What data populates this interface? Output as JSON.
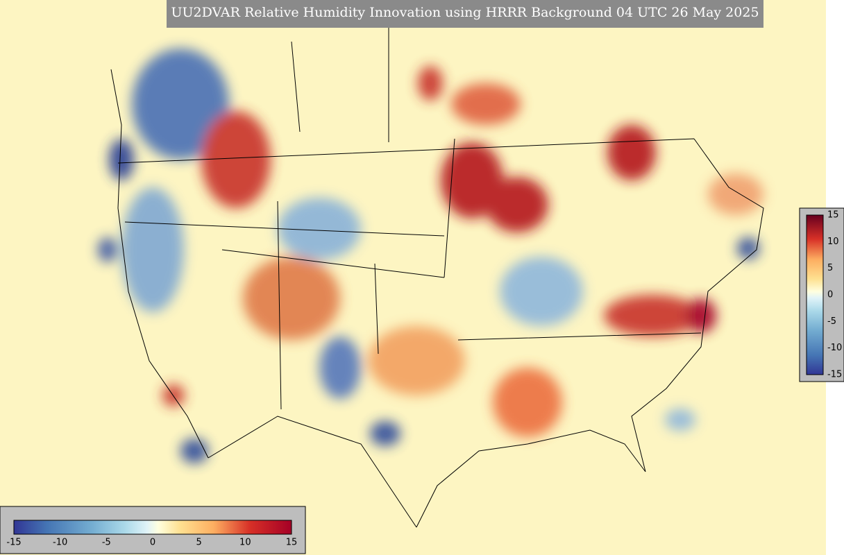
{
  "title": "UU2DVAR Relative Humidity Innovation using HRRR Background 04 UTC 26 May 2025",
  "colorbar_right": {
    "ticks": [
      15,
      10,
      5,
      0,
      -5,
      -10,
      -15
    ]
  },
  "colorbar_bottom": {
    "ticks": [
      -15,
      -10,
      -5,
      0,
      5,
      10,
      15
    ]
  }
}
